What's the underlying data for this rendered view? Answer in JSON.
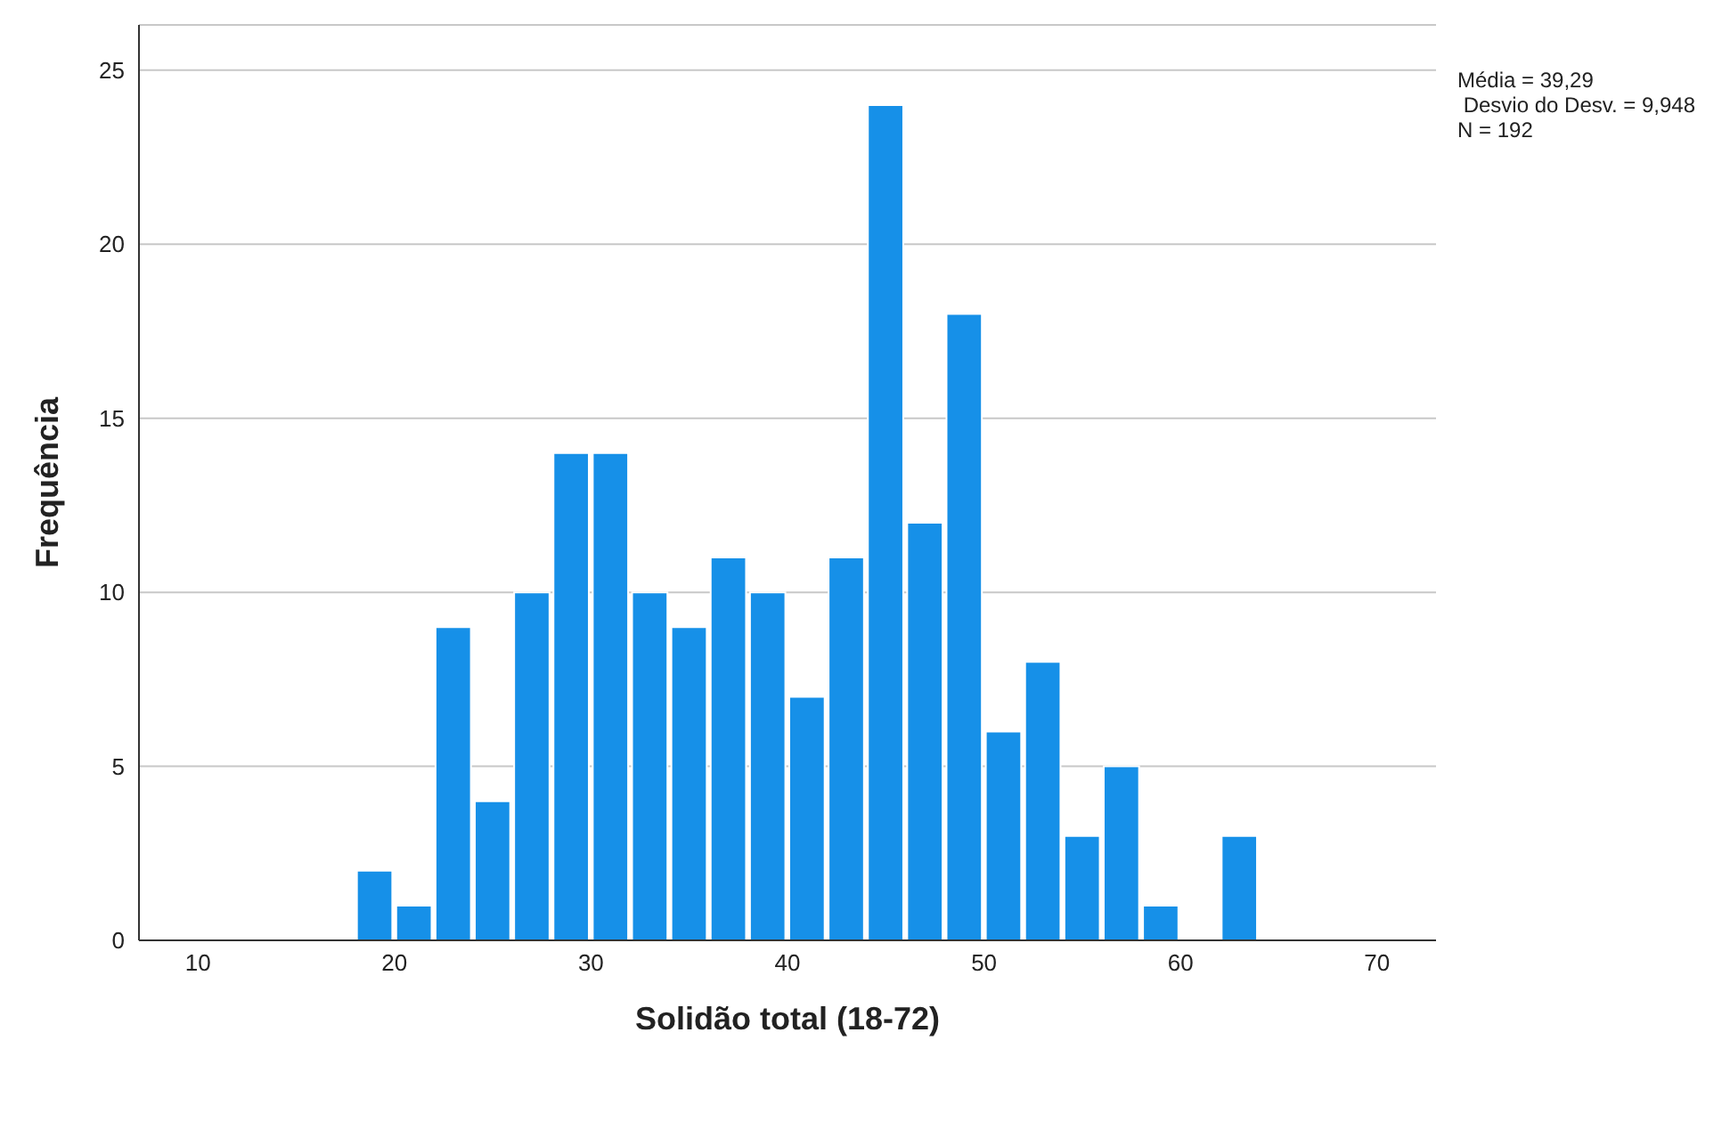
{
  "chart_data": {
    "type": "histogram",
    "xlabel": "Solidão total (18-72)",
    "ylabel": "Frequência",
    "bins": [
      18,
      20,
      22,
      24,
      26,
      28,
      30,
      32,
      34,
      36,
      38,
      40,
      42,
      44,
      46,
      48,
      50,
      52,
      54,
      56,
      58,
      60,
      62,
      64
    ],
    "values": [
      2,
      1,
      9,
      4,
      10,
      14,
      14,
      10,
      9,
      11,
      10,
      7,
      11,
      24,
      12,
      18,
      6,
      8,
      3,
      5,
      1,
      0,
      3
    ],
    "color": "#1690e8",
    "xlim": [
      7,
      73
    ],
    "xticks": [
      10,
      20,
      30,
      40,
      50,
      60,
      70
    ],
    "ylim": [
      0,
      26.3
    ],
    "yticks": [
      0,
      5,
      10,
      15,
      20,
      25
    ],
    "grid": "y",
    "legend": false,
    "annotations": [
      "Média = 39,29",
      " Desvio do Desv. = 9,948",
      "N = 192"
    ]
  }
}
